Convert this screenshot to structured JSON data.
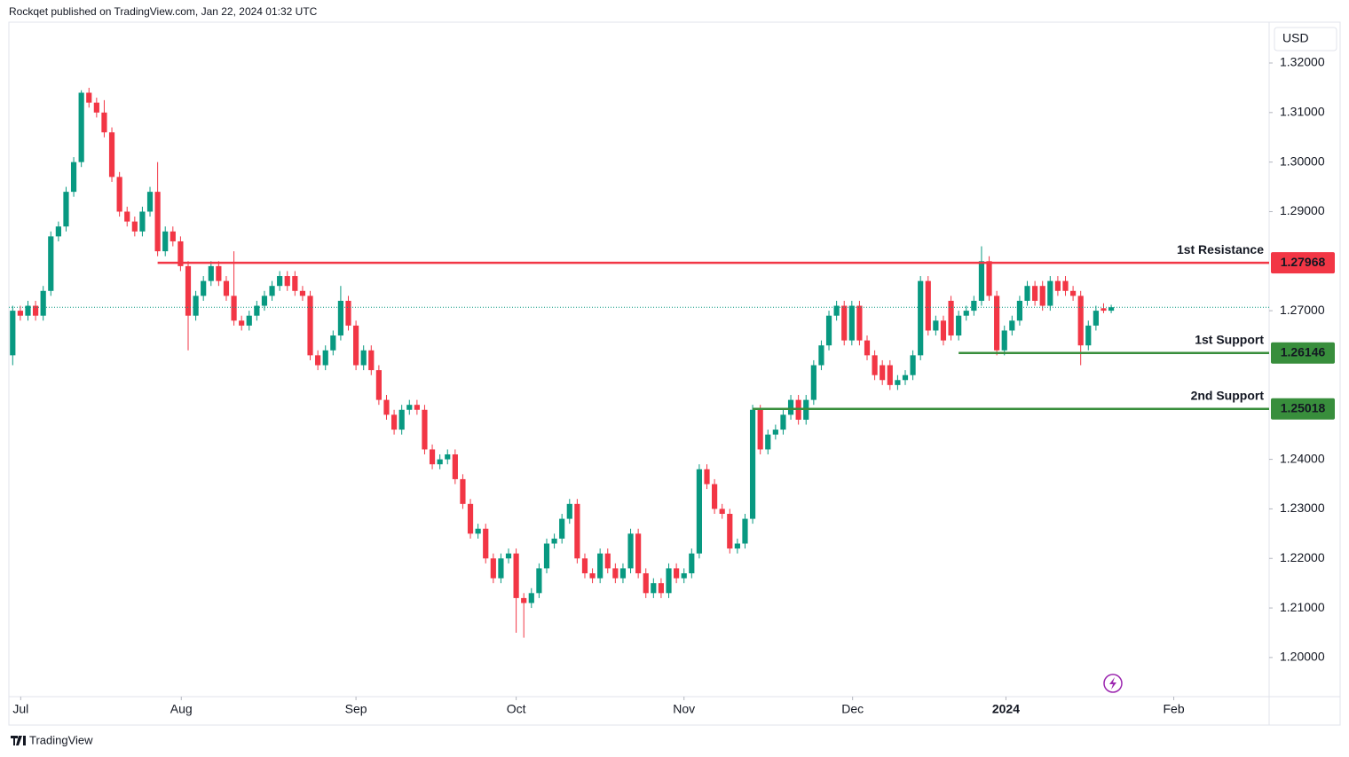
{
  "header": {
    "text": "Rockqet published on TradingView.com, Jan 22, 2024 01:32 UTC"
  },
  "footer": {
    "brand": "TradingView"
  },
  "chart_data": {
    "type": "candlestick",
    "currency": "USD",
    "up_color": "#089981",
    "down_color": "#f23645",
    "xlim": [
      -0.5,
      164.7
    ],
    "ylim": [
      1.1921,
      1.3277
    ],
    "xticks": [
      {
        "value": 1.05,
        "label": "Jul"
      },
      {
        "value": 22.1,
        "label": "Aug"
      },
      {
        "value": 45,
        "label": "Sep"
      },
      {
        "value": 66,
        "label": "Oct"
      },
      {
        "value": 88,
        "label": "Nov"
      },
      {
        "value": 110.1,
        "label": "Dec"
      },
      {
        "value": 130.2,
        "label": "2024",
        "bold": true
      },
      {
        "value": 152.2,
        "label": "Feb"
      }
    ],
    "yticks": [
      {
        "value": 1.32,
        "label": "1.32000"
      },
      {
        "value": 1.31,
        "label": "1.31000"
      },
      {
        "value": 1.3,
        "label": "1.30000"
      },
      {
        "value": 1.29,
        "label": "1.29000"
      },
      {
        "value": 1.27,
        "label": "1.27000"
      },
      {
        "value": 1.24,
        "label": "1.24000"
      },
      {
        "value": 1.23,
        "label": "1.23000"
      },
      {
        "value": 1.22,
        "label": "1.22000"
      },
      {
        "value": 1.21,
        "label": "1.21000"
      },
      {
        "value": 1.2,
        "label": "1.20000"
      }
    ],
    "levels": [
      {
        "name": "1st Resistance",
        "value": 1.27968,
        "color": "#f23645",
        "from": 19
      },
      {
        "name": "1st Support",
        "value": 1.26146,
        "color": "#388e3c",
        "from": 124
      },
      {
        "name": "2nd Support",
        "value": 1.25018,
        "color": "#388e3c",
        "from": 97
      }
    ],
    "open": [
      1.261,
      1.27,
      1.269,
      1.271,
      1.269,
      1.274,
      1.285,
      1.287,
      1.294,
      1.3,
      1.314,
      1.312,
      1.31,
      1.306,
      1.297,
      1.29,
      1.288,
      1.286,
      1.29,
      1.294,
      1.282,
      1.286,
      1.284,
      1.279,
      1.269,
      1.273,
      1.276,
      1.279,
      1.276,
      1.273,
      1.268,
      1.267,
      1.269,
      1.271,
      1.273,
      1.275,
      1.277,
      1.277,
      1.274,
      1.273,
      1.261,
      1.259,
      1.262,
      1.265,
      1.272,
      1.267,
      1.259,
      1.262,
      1.258,
      1.252,
      1.249,
      1.246,
      1.25,
      1.251,
      1.25,
      1.242,
      1.239,
      1.24,
      1.241,
      1.236,
      1.231,
      1.225,
      1.226,
      1.22,
      1.216,
      1.22,
      1.221,
      1.212,
      1.211,
      1.213,
      1.218,
      1.223,
      1.224,
      1.228,
      1.231,
      1.22,
      1.217,
      1.216,
      1.221,
      1.218,
      1.216,
      1.218,
      1.225,
      1.217,
      1.213,
      1.215,
      1.213,
      1.218,
      1.216,
      1.217,
      1.221,
      1.238,
      1.235,
      1.23,
      1.229,
      1.222,
      1.223,
      1.228,
      1.25,
      1.242,
      1.245,
      1.246,
      1.249,
      1.252,
      1.248,
      1.252,
      1.259,
      1.263,
      1.269,
      1.271,
      1.264,
      1.271,
      1.264,
      1.261,
      1.259,
      1.259,
      1.255,
      1.256,
      1.257,
      1.261,
      1.276,
      1.266,
      1.268,
      1.272,
      1.265,
      1.269,
      1.27,
      1.272,
      1.28,
      1.273,
      1.262,
      1.266,
      1.268,
      1.272,
      1.275,
      1.275,
      1.271,
      1.276,
      1.276,
      1.274,
      1.273,
      1.263,
      1.267,
      1.2705,
      1.27
    ],
    "high": [
      1.271,
      1.271,
      1.272,
      1.272,
      1.275,
      1.286,
      1.288,
      1.295,
      1.301,
      1.3145,
      1.315,
      1.313,
      1.3125,
      1.307,
      1.298,
      1.291,
      1.289,
      1.291,
      1.295,
      1.3,
      1.287,
      1.287,
      1.285,
      1.28,
      1.274,
      1.277,
      1.28,
      1.28,
      1.277,
      1.282,
      1.269,
      1.27,
      1.272,
      1.274,
      1.276,
      1.278,
      1.278,
      1.278,
      1.275,
      1.274,
      1.262,
      1.263,
      1.266,
      1.275,
      1.273,
      1.268,
      1.263,
      1.263,
      1.259,
      1.253,
      1.25,
      1.251,
      1.252,
      1.252,
      1.251,
      1.243,
      1.241,
      1.242,
      1.242,
      1.237,
      1.232,
      1.227,
      1.227,
      1.221,
      1.221,
      1.222,
      1.222,
      1.213,
      1.214,
      1.219,
      1.224,
      1.225,
      1.229,
      1.232,
      1.232,
      1.221,
      1.218,
      1.222,
      1.222,
      1.219,
      1.219,
      1.226,
      1.226,
      1.218,
      1.216,
      1.216,
      1.219,
      1.219,
      1.218,
      1.222,
      1.239,
      1.239,
      1.236,
      1.231,
      1.23,
      1.224,
      1.229,
      1.251,
      1.251,
      1.246,
      1.247,
      1.25,
      1.253,
      1.253,
      1.253,
      1.26,
      1.264,
      1.27,
      1.272,
      1.272,
      1.272,
      1.272,
      1.265,
      1.262,
      1.26,
      1.26,
      1.257,
      1.258,
      1.262,
      1.277,
      1.277,
      1.269,
      1.269,
      1.273,
      1.27,
      1.271,
      1.273,
      1.283,
      1.281,
      1.274,
      1.267,
      1.269,
      1.273,
      1.276,
      1.276,
      1.276,
      1.277,
      1.277,
      1.277,
      1.275,
      1.274,
      1.268,
      1.271,
      1.2715,
      1.2712
    ],
    "low": [
      1.259,
      1.268,
      1.268,
      1.268,
      1.268,
      1.273,
      1.284,
      1.286,
      1.293,
      1.299,
      1.311,
      1.309,
      1.305,
      1.296,
      1.289,
      1.287,
      1.285,
      1.285,
      1.289,
      1.281,
      1.281,
      1.283,
      1.278,
      1.262,
      1.268,
      1.272,
      1.275,
      1.275,
      1.272,
      1.267,
      1.266,
      1.266,
      1.268,
      1.27,
      1.272,
      1.274,
      1.274,
      1.273,
      1.272,
      1.26,
      1.258,
      1.258,
      1.261,
      1.264,
      1.266,
      1.258,
      1.258,
      1.257,
      1.251,
      1.248,
      1.245,
      1.245,
      1.249,
      1.249,
      1.241,
      1.238,
      1.238,
      1.239,
      1.235,
      1.23,
      1.224,
      1.224,
      1.219,
      1.215,
      1.215,
      1.219,
      1.205,
      1.204,
      1.21,
      1.212,
      1.217,
      1.222,
      1.223,
      1.227,
      1.219,
      1.216,
      1.215,
      1.215,
      1.217,
      1.215,
      1.215,
      1.217,
      1.216,
      1.212,
      1.212,
      1.212,
      1.212,
      1.215,
      1.215,
      1.216,
      1.22,
      1.234,
      1.229,
      1.228,
      1.221,
      1.221,
      1.222,
      1.227,
      1.241,
      1.241,
      1.244,
      1.245,
      1.248,
      1.247,
      1.247,
      1.251,
      1.258,
      1.262,
      1.268,
      1.263,
      1.263,
      1.263,
      1.26,
      1.256,
      1.255,
      1.254,
      1.254,
      1.255,
      1.256,
      1.26,
      1.265,
      1.265,
      1.263,
      1.264,
      1.264,
      1.268,
      1.269,
      1.271,
      1.272,
      1.261,
      1.261,
      1.265,
      1.267,
      1.271,
      1.271,
      1.27,
      1.27,
      1.273,
      1.273,
      1.272,
      1.259,
      1.262,
      1.266,
      1.2695,
      1.2695
    ],
    "close": [
      1.27,
      1.269,
      1.271,
      1.269,
      1.274,
      1.285,
      1.287,
      1.294,
      1.3,
      1.314,
      1.312,
      1.31,
      1.306,
      1.297,
      1.29,
      1.288,
      1.286,
      1.29,
      1.294,
      1.282,
      1.286,
      1.284,
      1.279,
      1.269,
      1.273,
      1.276,
      1.279,
      1.276,
      1.273,
      1.268,
      1.267,
      1.269,
      1.271,
      1.273,
      1.275,
      1.277,
      1.275,
      1.274,
      1.273,
      1.261,
      1.259,
      1.262,
      1.265,
      1.272,
      1.267,
      1.259,
      1.262,
      1.258,
      1.252,
      1.249,
      1.246,
      1.25,
      1.251,
      1.25,
      1.242,
      1.239,
      1.24,
      1.241,
      1.236,
      1.231,
      1.225,
      1.226,
      1.22,
      1.216,
      1.22,
      1.221,
      1.212,
      1.211,
      1.213,
      1.218,
      1.223,
      1.224,
      1.228,
      1.231,
      1.22,
      1.217,
      1.216,
      1.221,
      1.218,
      1.216,
      1.218,
      1.225,
      1.217,
      1.213,
      1.215,
      1.213,
      1.218,
      1.216,
      1.217,
      1.221,
      1.238,
      1.235,
      1.23,
      1.229,
      1.222,
      1.223,
      1.228,
      1.25,
      1.242,
      1.245,
      1.246,
      1.249,
      1.252,
      1.248,
      1.252,
      1.259,
      1.263,
      1.269,
      1.271,
      1.264,
      1.271,
      1.264,
      1.261,
      1.257,
      1.256,
      1.255,
      1.256,
      1.257,
      1.261,
      1.276,
      1.266,
      1.268,
      1.264,
      1.265,
      1.269,
      1.27,
      1.272,
      1.28,
      1.273,
      1.262,
      1.266,
      1.268,
      1.272,
      1.275,
      1.272,
      1.271,
      1.276,
      1.274,
      1.274,
      1.273,
      1.263,
      1.267,
      1.27,
      1.27,
      1.2707
    ]
  }
}
